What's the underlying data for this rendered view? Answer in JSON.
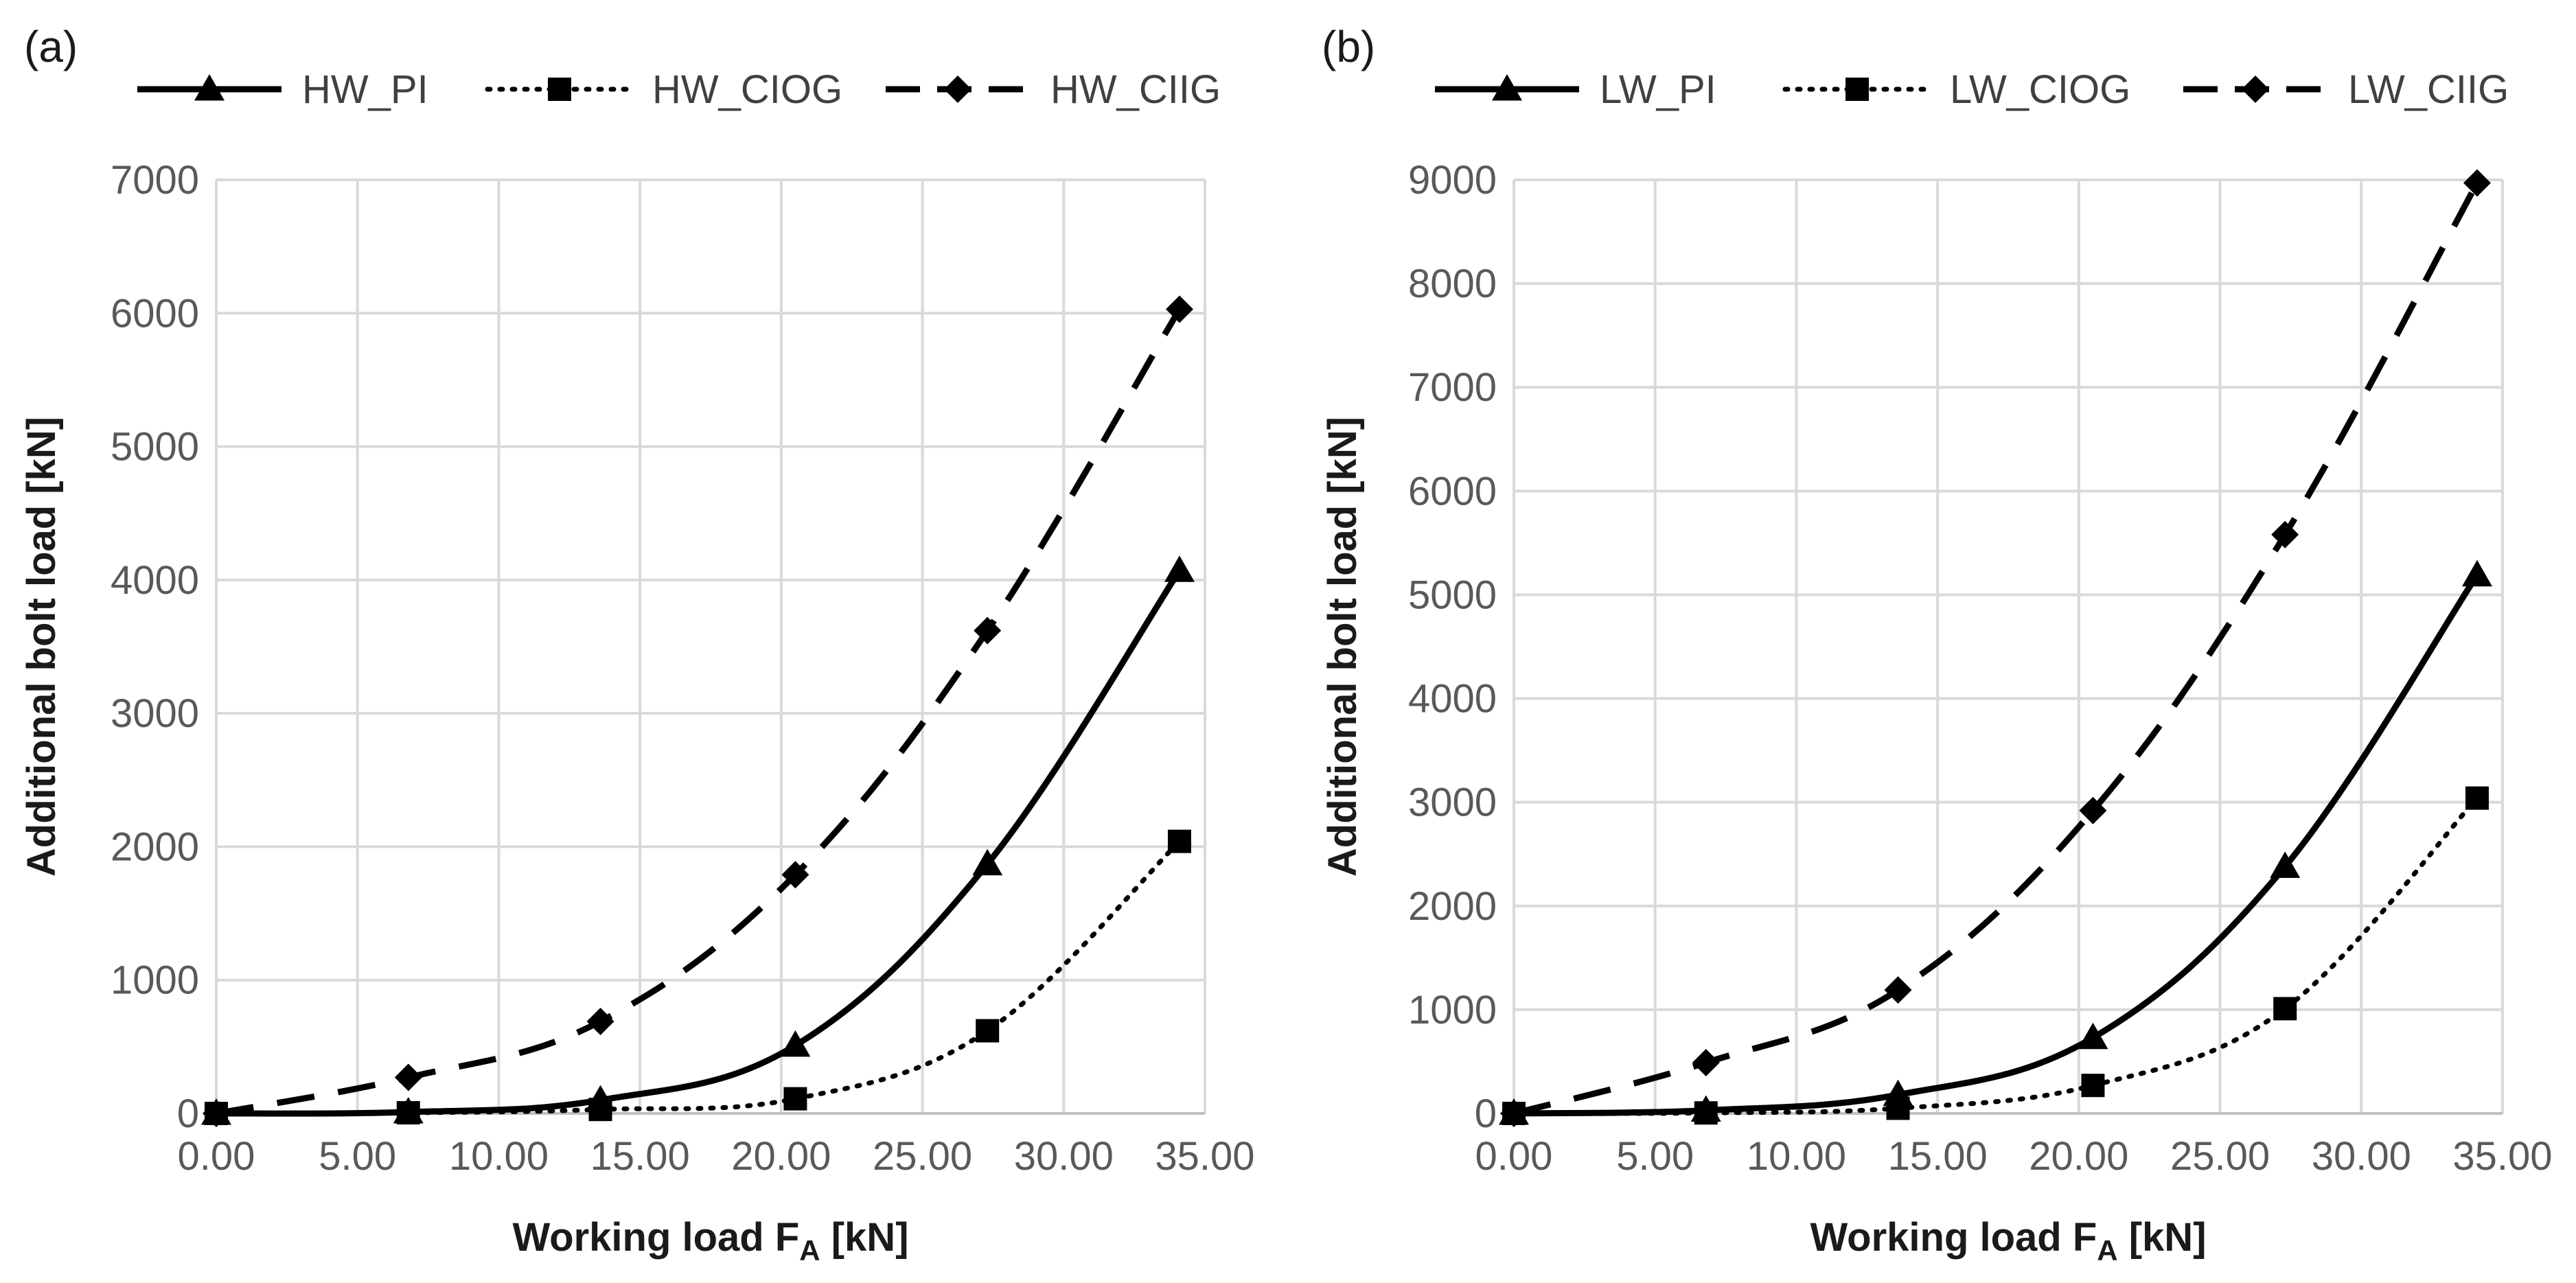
{
  "chart_data": [
    {
      "type": "line",
      "panel_label": "(a)",
      "xlabel": "Working load F",
      "xlabel_sub": "A",
      "xlabel_unit": " [kN]",
      "ylabel": "Additional  bolt load [kN]",
      "xlim": [
        0,
        35
      ],
      "ylim": [
        0,
        7000
      ],
      "x_ticks": [
        "0.00",
        "5.00",
        "10.00",
        "15.00",
        "20.00",
        "25.00",
        "30.00",
        "35.00"
      ],
      "y_ticks": [
        "0",
        "1000",
        "2000",
        "3000",
        "4000",
        "5000",
        "6000",
        "7000"
      ],
      "grid": true,
      "legend_position": "top",
      "series": [
        {
          "name": "HW_PI",
          "style": "solid",
          "marker": "triangle",
          "x": [
            0,
            6.8,
            13.6,
            20.5,
            27.3,
            34.1
          ],
          "y": [
            0,
            10,
            100,
            510,
            1870,
            4070
          ]
        },
        {
          "name": "HW_CIOG",
          "style": "dotted",
          "marker": "square",
          "x": [
            0,
            6.8,
            13.6,
            20.5,
            27.3,
            34.1
          ],
          "y": [
            0,
            5,
            30,
            110,
            620,
            2040
          ]
        },
        {
          "name": "HW_CIIG",
          "style": "dashed",
          "marker": "diamond",
          "x": [
            0,
            6.8,
            13.6,
            20.5,
            27.3,
            34.1
          ],
          "y": [
            0,
            270,
            690,
            1790,
            3620,
            6030
          ]
        }
      ]
    },
    {
      "type": "line",
      "panel_label": "(b)",
      "xlabel": "Working load F",
      "xlabel_sub": "A",
      "xlabel_unit": " [kN]",
      "ylabel": "Additional  bolt load [kN]",
      "xlim": [
        0,
        35
      ],
      "ylim": [
        0,
        9000
      ],
      "x_ticks": [
        "0.00",
        "5.00",
        "10.00",
        "15.00",
        "20.00",
        "25.00",
        "30.00",
        "35.00"
      ],
      "y_ticks": [
        "0",
        "1000",
        "2000",
        "3000",
        "4000",
        "5000",
        "6000",
        "7000",
        "8000",
        "9000"
      ],
      "grid": true,
      "legend_position": "top",
      "series": [
        {
          "name": "LW_PI",
          "style": "solid",
          "marker": "triangle",
          "x": [
            0,
            6.8,
            13.6,
            20.5,
            27.3,
            34.1
          ],
          "y": [
            0,
            30,
            180,
            730,
            2380,
            5190
          ]
        },
        {
          "name": "LW_CIOG",
          "style": "dotted",
          "marker": "square",
          "x": [
            0,
            6.8,
            13.6,
            20.5,
            27.3,
            34.1
          ],
          "y": [
            0,
            5,
            50,
            270,
            1010,
            3040
          ]
        },
        {
          "name": "LW_CIIG",
          "style": "dashed",
          "marker": "diamond",
          "x": [
            0,
            6.8,
            13.6,
            20.5,
            27.3,
            34.1
          ],
          "y": [
            0,
            490,
            1190,
            2920,
            5580,
            8970
          ]
        }
      ]
    }
  ],
  "colors": {
    "line": "#000000",
    "grid": "#d9d9d9",
    "tick_text": "#595959"
  }
}
